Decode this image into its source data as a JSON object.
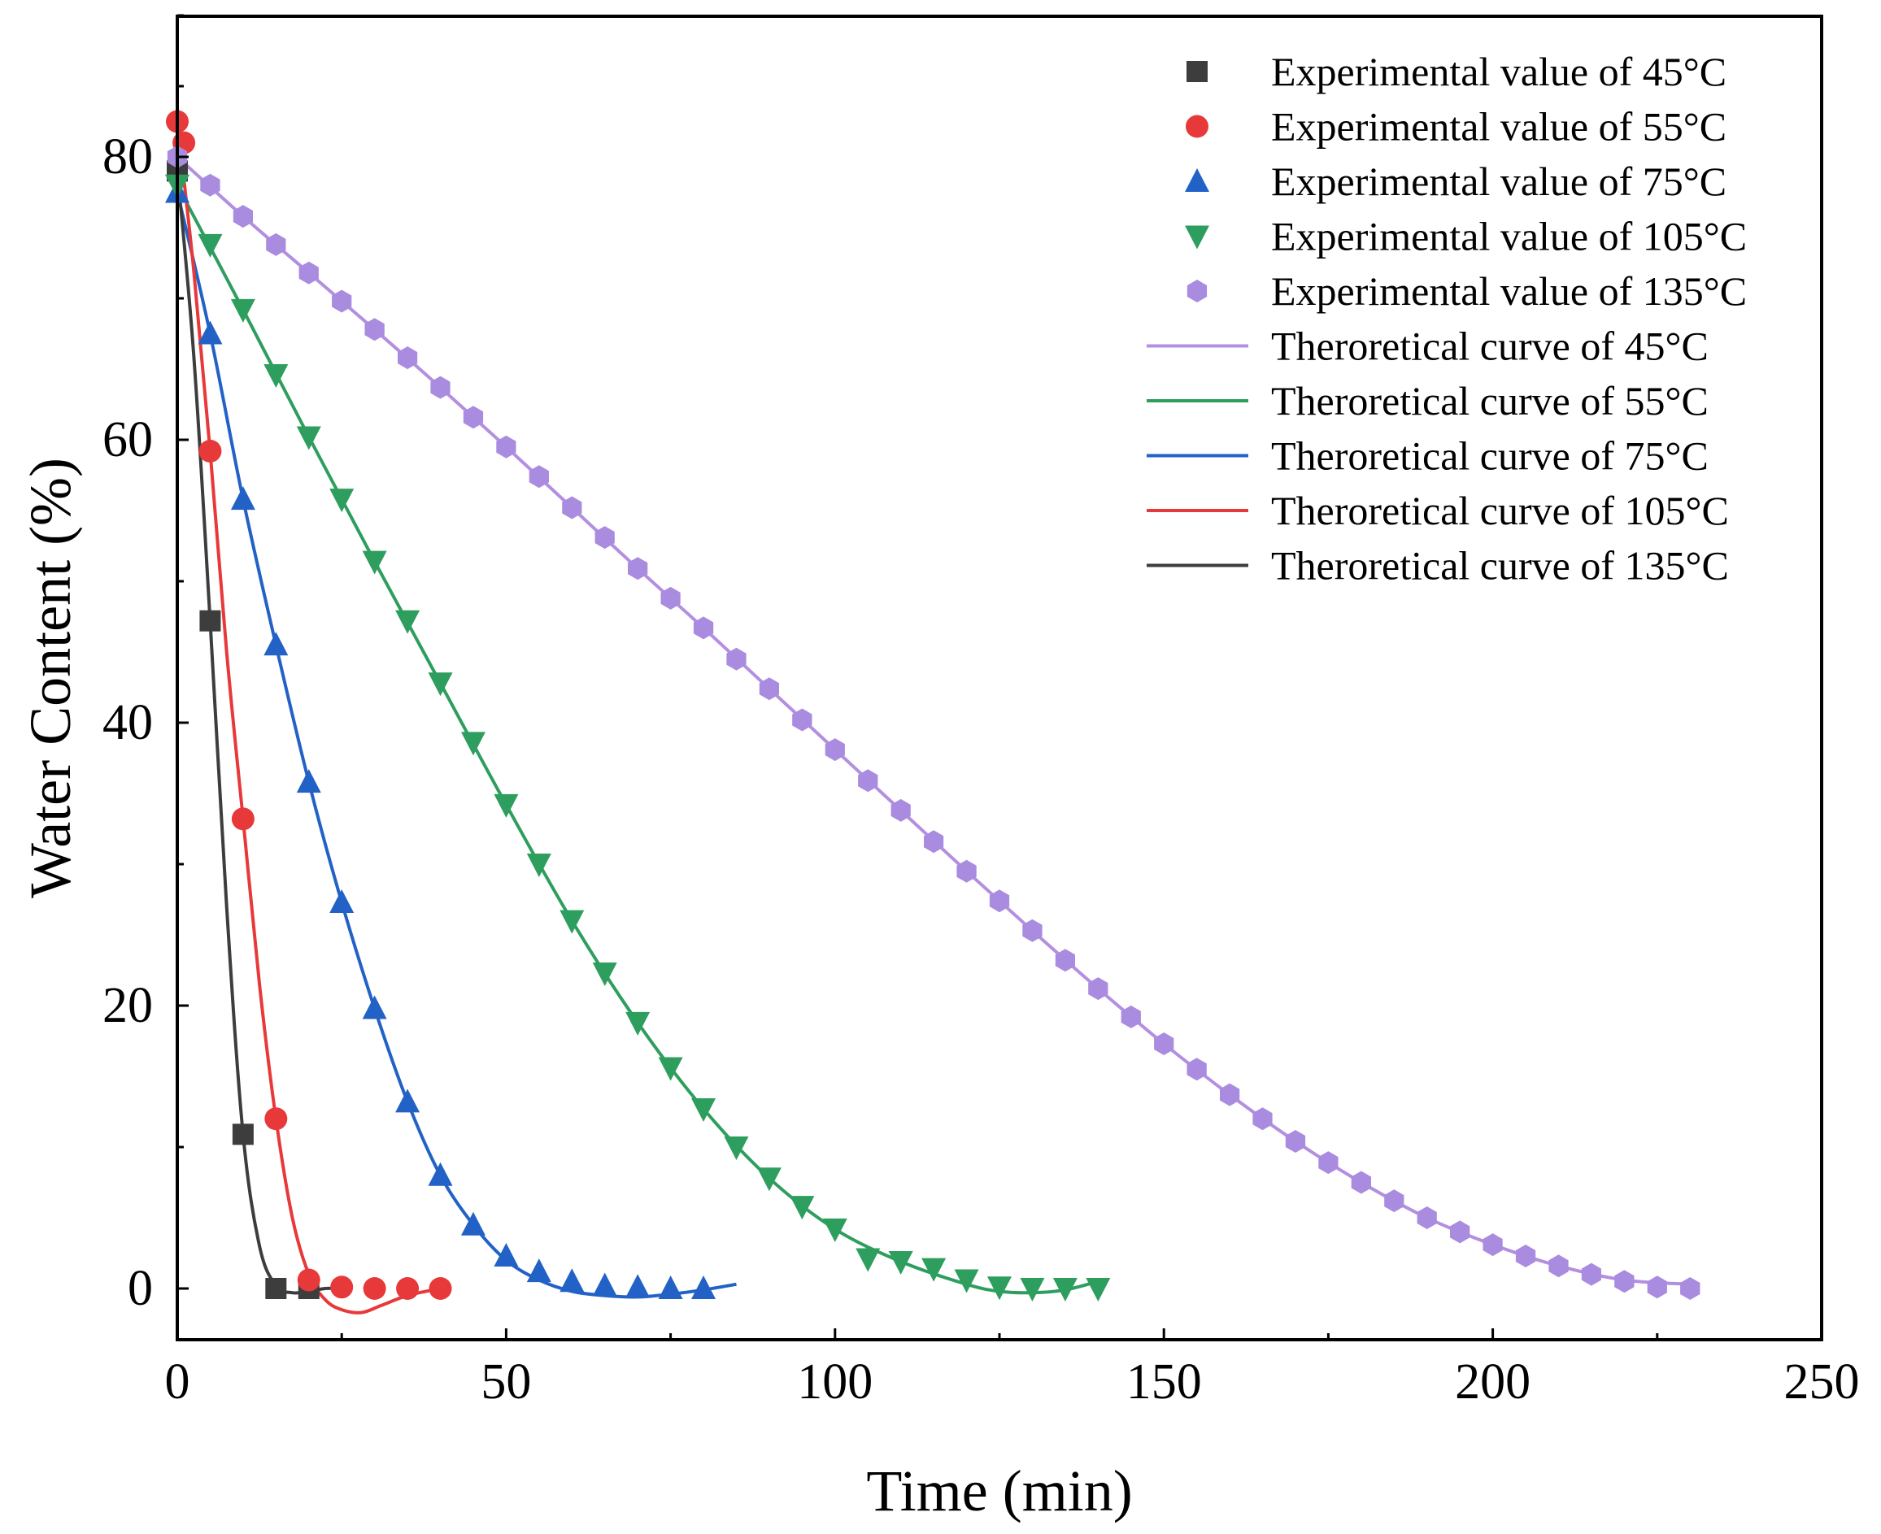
{
  "chart_data": {
    "type": "scatter",
    "title": "",
    "xlabel": "Time (min)",
    "ylabel": "Water Content (%)",
    "xlim": [
      0,
      250
    ],
    "ylim": [
      -4,
      90
    ],
    "xticks": [
      0,
      50,
      100,
      150,
      200,
      250
    ],
    "yticks": [
      0,
      20,
      40,
      60,
      80
    ],
    "legend_position": "top-right",
    "experimental_series": [
      {
        "name": "Experimental value of 45°C",
        "marker": "square",
        "color": "#3d3d3d",
        "x": [
          0,
          5,
          10,
          15,
          20
        ],
        "y": [
          79,
          47.2,
          10.9,
          0,
          0
        ]
      },
      {
        "name": "Experimental value of 55°C",
        "marker": "circle",
        "color": "#e8393a",
        "x": [
          0,
          1,
          5,
          10,
          15,
          20,
          25,
          30,
          35,
          40
        ],
        "y": [
          82.5,
          81,
          59.2,
          33.2,
          12,
          0.6,
          0.1,
          0,
          0,
          0
        ]
      },
      {
        "name": "Experimental value of 75°C",
        "marker": "triangle-up",
        "color": "#2262c6",
        "x": [
          0,
          5,
          10,
          15,
          20,
          25,
          30,
          35,
          40,
          45,
          50,
          55,
          60,
          65,
          70,
          75,
          80
        ],
        "y": [
          77.5,
          67.5,
          55.8,
          45.5,
          35.8,
          27.3,
          19.8,
          13.2,
          8,
          4.5,
          2.3,
          1.2,
          0.5,
          0.2,
          0.1,
          0,
          0
        ]
      },
      {
        "name": "Experimental value of 105°C",
        "marker": "triangle-down",
        "color": "#2e9e5e",
        "x": [
          0,
          5,
          10,
          15,
          20,
          25,
          30,
          35,
          40,
          45,
          50,
          55,
          60,
          65,
          70,
          75,
          80,
          85,
          90,
          95,
          100,
          105,
          110,
          115,
          120,
          125,
          130,
          135,
          140
        ],
        "y": [
          78,
          73.8,
          69.2,
          64.6,
          60.2,
          55.8,
          51.4,
          47.2,
          42.8,
          38.6,
          34.2,
          30,
          26,
          22.3,
          18.8,
          15.6,
          12.7,
          10,
          7.8,
          5.8,
          4.2,
          2.1,
          1.9,
          1.4,
          0.6,
          0.1,
          0,
          0,
          0
        ]
      },
      {
        "name": "Experimental value of 135°C",
        "marker": "hexagon",
        "color": "#a98be0",
        "x": [
          0,
          5,
          10,
          15,
          20,
          25,
          30,
          35,
          40,
          45,
          50,
          55,
          60,
          65,
          70,
          75,
          80,
          85,
          90,
          95,
          100,
          105,
          110,
          115,
          120,
          125,
          130,
          135,
          140,
          145,
          150,
          155,
          160,
          165,
          170,
          175,
          180,
          185,
          190,
          195,
          200,
          205,
          210,
          215,
          220,
          225,
          230
        ],
        "y": [
          80,
          78,
          75.8,
          73.8,
          71.8,
          69.8,
          67.8,
          65.8,
          63.7,
          61.6,
          59.5,
          57.4,
          55.2,
          53.1,
          50.9,
          48.8,
          46.7,
          44.5,
          42.4,
          40.2,
          38.1,
          35.9,
          33.8,
          31.6,
          29.5,
          27.4,
          25.3,
          23.2,
          21.2,
          19.2,
          17.3,
          15.5,
          13.7,
          12,
          10.4,
          8.9,
          7.5,
          6.2,
          5,
          4,
          3.1,
          2.3,
          1.6,
          1,
          0.5,
          0.1,
          0
        ]
      }
    ],
    "theoretical_series": [
      {
        "name": "Theroretical curve of 45°C",
        "color": "#b48ee0",
        "x": [
          0,
          10,
          20,
          30,
          40,
          50,
          60,
          70,
          80,
          90,
          100,
          110,
          120,
          130,
          140,
          150,
          160,
          170,
          180,
          190,
          200,
          210,
          220,
          230
        ],
        "y": [
          80,
          75.8,
          71.8,
          67.8,
          63.7,
          59.5,
          55.2,
          50.9,
          46.7,
          42.4,
          38.1,
          33.8,
          29.5,
          25.3,
          21.2,
          17.3,
          13.7,
          10.4,
          7.5,
          5,
          3.1,
          1.6,
          0.6,
          0.3
        ]
      },
      {
        "name": "Theroretical curve of 55°C",
        "color": "#2e9e5e",
        "x": [
          0,
          10,
          20,
          30,
          40,
          50,
          60,
          70,
          80,
          90,
          100,
          110,
          120,
          125,
          130,
          135,
          140
        ],
        "y": [
          78,
          69.2,
          60.2,
          51.4,
          42.8,
          34.2,
          26,
          18.8,
          12.7,
          7.8,
          4.2,
          1.9,
          0.3,
          -0.2,
          -0.3,
          -0.1,
          0.5
        ]
      },
      {
        "name": "Theroretical curve of 75°C",
        "color": "#2262c6",
        "x": [
          0,
          5,
          10,
          15,
          20,
          25,
          30,
          35,
          40,
          45,
          50,
          55,
          60,
          65,
          70,
          75,
          80,
          85
        ],
        "y": [
          77.5,
          67.5,
          55.8,
          45.5,
          35.8,
          27.3,
          19.8,
          13.2,
          8,
          4.5,
          2,
          0.6,
          -0.2,
          -0.5,
          -0.6,
          -0.4,
          -0.1,
          0.3
        ]
      },
      {
        "name": "Theroretical curve of 105°C",
        "color": "#e8393a",
        "x": [
          0,
          2.5,
          5,
          7.5,
          10,
          12.5,
          15,
          17.5,
          20,
          22.5,
          25,
          28,
          31,
          35,
          40
        ],
        "y": [
          82.5,
          72,
          59.2,
          45,
          33.2,
          21.5,
          12,
          5,
          1,
          -0.8,
          -1.5,
          -1.7,
          -1.2,
          -0.5,
          0
        ]
      },
      {
        "name": "Theroretical curve of 135°C",
        "color": "#3d3d3d",
        "x": [
          0,
          2.5,
          5,
          7.5,
          10,
          12.5,
          15,
          17.5,
          20,
          22.5,
          25
        ],
        "y": [
          79,
          66,
          47.2,
          27,
          10.9,
          3,
          0.2,
          -0.3,
          -0.2,
          0,
          0
        ]
      }
    ]
  }
}
